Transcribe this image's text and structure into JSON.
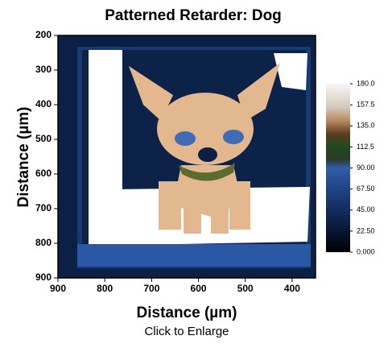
{
  "chart_data": {
    "type": "heatmap",
    "title": "Patterned Retarder: Dog",
    "xlabel": "Distance (µm)",
    "ylabel": "Distance (µm)",
    "xlim": [
      900,
      350
    ],
    "xticks": [
      900,
      800,
      700,
      600,
      500,
      400
    ],
    "ylim": [
      900,
      200
    ],
    "yticks": [
      200,
      300,
      400,
      500,
      600,
      700,
      800,
      900
    ],
    "colorbar": {
      "lim": [
        0,
        180
      ],
      "ticks": [
        {
          "value": 180,
          "label": "180.0"
        },
        {
          "value": 157.5,
          "label": "157.5"
        },
        {
          "value": 135,
          "label": "135.0"
        },
        {
          "value": 112.5,
          "label": "112.5"
        },
        {
          "value": 90,
          "label": "90.00"
        },
        {
          "value": 67.5,
          "label": "67.50"
        },
        {
          "value": 45,
          "label": "45.00"
        },
        {
          "value": 22.5,
          "label": "22.50"
        },
        {
          "value": 0,
          "label": "0.000"
        }
      ]
    },
    "caption": "Click to Enlarge"
  }
}
